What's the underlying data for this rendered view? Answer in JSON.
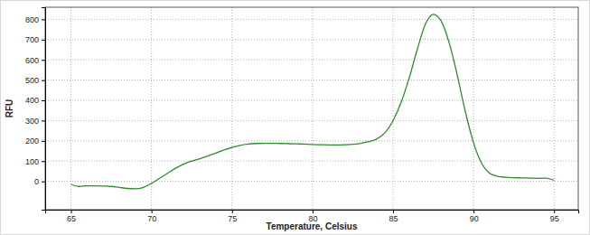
{
  "chart_data": {
    "type": "line",
    "x_label": "Temperature, Celsius",
    "y_label": "RFU",
    "color": "#2e8b2e",
    "grid": true,
    "xlim": [
      63.4,
      96.5
    ],
    "xticks": [
      65,
      70,
      75,
      80,
      85,
      90,
      95
    ],
    "ylim": [
      -140,
      860
    ],
    "yticks": [
      0,
      100,
      200,
      300,
      400,
      500,
      600,
      700,
      800
    ],
    "x": [
      65,
      65.5,
      66,
      66.5,
      67,
      67.5,
      68,
      68.5,
      69,
      69.5,
      70,
      70.5,
      71,
      71.5,
      72,
      72.5,
      73,
      73.5,
      74,
      74.5,
      75,
      75.5,
      76,
      76.5,
      77,
      77.5,
      78,
      78.5,
      79,
      79.5,
      80,
      80.5,
      81,
      81.5,
      82,
      82.5,
      83,
      83.5,
      84,
      84.5,
      85,
      85.5,
      86,
      86.5,
      87,
      87.5,
      88,
      88.5,
      89,
      89.5,
      90,
      90.5,
      91,
      91.5,
      92,
      92.5,
      93,
      93.5,
      94,
      94.5,
      95
    ],
    "values": [
      -15,
      -25,
      -22,
      -22,
      -23,
      -25,
      -30,
      -35,
      -37,
      -30,
      -10,
      15,
      40,
      65,
      85,
      100,
      112,
      125,
      140,
      155,
      168,
      178,
      184,
      187,
      188,
      188,
      187,
      186,
      185,
      184,
      182,
      181,
      180,
      180,
      181,
      183,
      188,
      196,
      210,
      240,
      300,
      390,
      510,
      650,
      775,
      825,
      790,
      680,
      520,
      340,
      190,
      90,
      40,
      25,
      20,
      18,
      17,
      16,
      15,
      16,
      5
    ]
  }
}
